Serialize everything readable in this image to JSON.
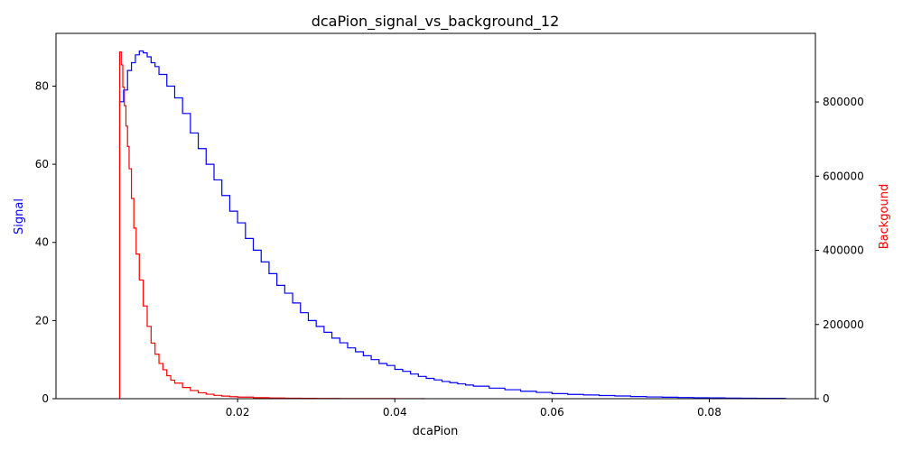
{
  "chart_data": {
    "type": "line",
    "title": "dcaPion_signal_vs_background_12",
    "xlabel": "dcaPion",
    "ylabel_left": "Signal",
    "ylabel_right": "Backgound",
    "xlim": [
      -0.0031,
      0.0935
    ],
    "ylim_left": [
      0,
      93.5
    ],
    "ylim_right": [
      0,
      985000
    ],
    "x_ticks": [
      0.02,
      0.04,
      0.06,
      0.08
    ],
    "x_tick_labels": [
      "0.02",
      "0.04",
      "0.06",
      "0.08"
    ],
    "y_left_ticks": [
      0,
      20,
      40,
      60,
      80
    ],
    "y_left_tick_labels": [
      "0",
      "20",
      "40",
      "60",
      "80"
    ],
    "y_right_ticks": [
      0,
      200000,
      400000,
      600000,
      800000
    ],
    "y_right_tick_labels": [
      "0",
      "200000",
      "400000",
      "600000",
      "800000"
    ],
    "grid": false,
    "legend": "none",
    "colors": {
      "signal": "#0000ff",
      "background": "#ff0000",
      "axes": "#000000"
    },
    "series": [
      {
        "axis": "left",
        "color": "#0000ff",
        "x": [
          0.005,
          0.0055,
          0.006,
          0.0065,
          0.007,
          0.0075,
          0.008,
          0.0085,
          0.009,
          0.0095,
          0.01,
          0.011,
          0.012,
          0.013,
          0.014,
          0.015,
          0.016,
          0.017,
          0.018,
          0.019,
          0.02,
          0.021,
          0.022,
          0.023,
          0.024,
          0.025,
          0.026,
          0.027,
          0.028,
          0.029,
          0.03,
          0.031,
          0.032,
          0.033,
          0.034,
          0.035,
          0.036,
          0.037,
          0.038,
          0.039,
          0.04,
          0.041,
          0.042,
          0.043,
          0.044,
          0.045,
          0.046,
          0.047,
          0.048,
          0.049,
          0.05,
          0.052,
          0.054,
          0.056,
          0.058,
          0.06,
          0.062,
          0.064,
          0.066,
          0.068,
          0.07,
          0.072,
          0.074,
          0.076,
          0.078,
          0.08,
          0.082,
          0.084,
          0.086,
          0.088,
          0.0895
        ],
        "values": [
          76,
          79,
          84,
          86,
          88,
          89,
          88.5,
          87.5,
          86,
          85,
          83,
          80,
          77,
          73,
          68,
          64,
          60,
          56,
          52,
          48,
          45,
          41,
          38,
          35,
          32,
          29,
          27,
          24.5,
          22,
          20,
          18.5,
          17,
          15.5,
          14.3,
          13,
          12,
          11,
          10,
          9,
          8.5,
          7.5,
          7,
          6.3,
          5.7,
          5.2,
          4.8,
          4.4,
          4.1,
          3.8,
          3.5,
          3.2,
          2.7,
          2.3,
          1.9,
          1.6,
          1.3,
          1.1,
          0.95,
          0.8,
          0.7,
          0.55,
          0.45,
          0.38,
          0.3,
          0.25,
          0.2,
          0.15,
          0.12,
          0.1,
          0.08,
          0.05
        ]
      },
      {
        "axis": "right",
        "color": "#ff0000",
        "x": [
          0.005,
          0.0052,
          0.0054,
          0.0056,
          0.0058,
          0.006,
          0.0062,
          0.0065,
          0.0068,
          0.0071,
          0.0075,
          0.008,
          0.0085,
          0.009,
          0.0095,
          0.01,
          0.0105,
          0.011,
          0.0115,
          0.012,
          0.013,
          0.014,
          0.015,
          0.016,
          0.017,
          0.018,
          0.019,
          0.02,
          0.022,
          0.024,
          0.026,
          0.028,
          0.03,
          0.033,
          0.036,
          0.04,
          0.0435
        ],
        "values": [
          935000,
          900000,
          840000,
          790000,
          735000,
          680000,
          620000,
          540000,
          460000,
          390000,
          320000,
          250000,
          195000,
          150000,
          120000,
          95000,
          78000,
          62000,
          50000,
          42000,
          30000,
          22000,
          16000,
          12000,
          9000,
          7000,
          5500,
          4200,
          2800,
          1900,
          1300,
          900,
          600,
          400,
          250,
          150,
          80
        ]
      }
    ]
  }
}
